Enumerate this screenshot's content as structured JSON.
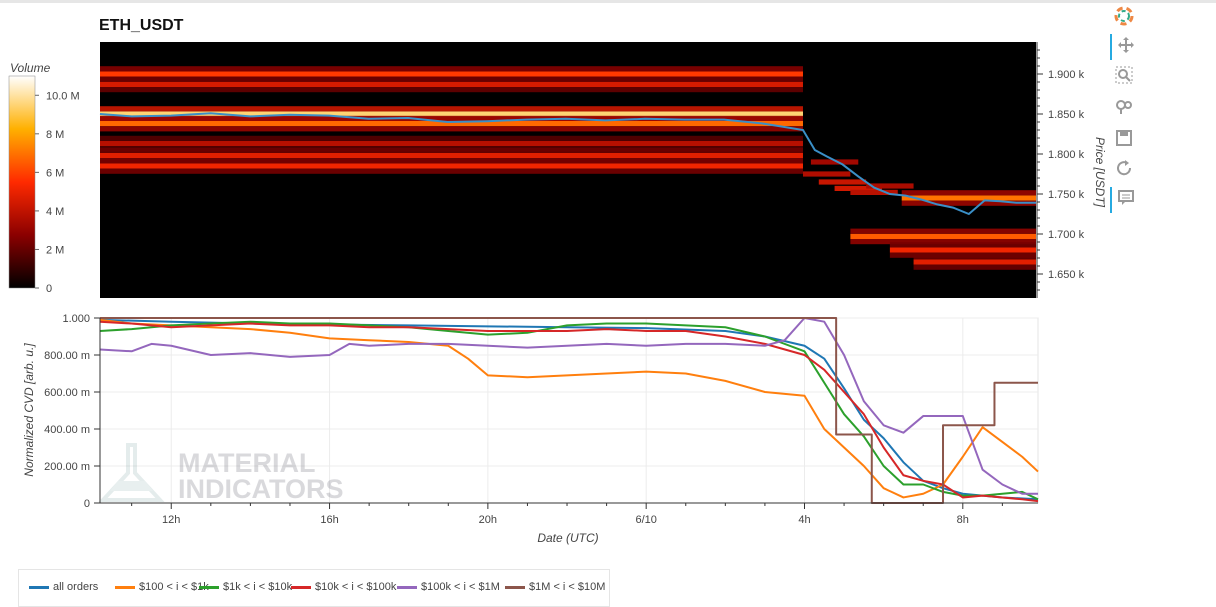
{
  "title": "ETH_USDT",
  "toolbar": [
    {
      "name": "bokeh-logo-icon",
      "label": "Bokeh"
    },
    {
      "name": "pan-icon",
      "label": "Pan",
      "active": true
    },
    {
      "name": "box-zoom-icon",
      "label": "Box Zoom"
    },
    {
      "name": "wheel-zoom-icon",
      "label": "Wheel Zoom"
    },
    {
      "name": "save-icon",
      "label": "Save"
    },
    {
      "name": "reset-icon",
      "label": "Reset"
    },
    {
      "name": "hover-icon",
      "label": "Hover",
      "active": true
    }
  ],
  "chart_data": [
    {
      "type": "heatmap",
      "title": "ETH_USDT",
      "colorbar": {
        "label": "Volume",
        "ticks": [
          "0",
          "2 M",
          "4 M",
          "6 M",
          "8 M",
          "10.0 M"
        ],
        "range": [
          0,
          11000000
        ]
      },
      "ylabel": "Price [USDT]",
      "yticks": [
        "1.650 k",
        "1.700 k",
        "1.750 k",
        "1.800 k",
        "1.850 k",
        "1.900 k"
      ],
      "ylim": [
        1620,
        1940
      ],
      "x_range_hours": [
        10.2,
        33.9
      ],
      "bands": [
        {
          "price": 1900,
          "volume": 5800000,
          "t_end": 28.0
        },
        {
          "price": 1887,
          "volume": 4500000,
          "t_end": 28.0
        },
        {
          "price": 1850,
          "volume": 9500000,
          "t_end": 28.0
        },
        {
          "price": 1838,
          "volume": 6800000,
          "t_end": 28.0
        },
        {
          "price": 1813,
          "volume": 3800000,
          "t_end": 28.0
        },
        {
          "price": 1798,
          "volume": 4800000,
          "t_end": 28.0
        },
        {
          "price": 1785,
          "volume": 5200000,
          "t_end": 28.0
        },
        {
          "price": 1745,
          "volume": 7000000,
          "t_start": 30.5
        },
        {
          "price": 1697,
          "volume": 6500000,
          "t_start": 29.2
        },
        {
          "price": 1680,
          "volume": 5200000,
          "t_start": 30.2
        },
        {
          "price": 1665,
          "volume": 4800000,
          "t_start": 30.8
        }
      ],
      "price_line": {
        "color": "#3a8fc7",
        "x": [
          10.2,
          11,
          12,
          13,
          14,
          15,
          16,
          17,
          18,
          19,
          20,
          21,
          22,
          23,
          24,
          25,
          26,
          27,
          28,
          28.3,
          28.6,
          29,
          29.4,
          29.8,
          30.2,
          30.6,
          31,
          31.4,
          31.8,
          32.2,
          32.6,
          33,
          33.4,
          33.9
        ],
        "y": [
          1850,
          1847,
          1848,
          1851,
          1847,
          1849,
          1848,
          1844,
          1845,
          1840,
          1841,
          1843,
          1844,
          1842,
          1844,
          1843,
          1843,
          1838,
          1830,
          1805,
          1797,
          1787,
          1772,
          1758,
          1750,
          1748,
          1743,
          1737,
          1733,
          1725,
          1742,
          1741,
          1739,
          1739
        ]
      }
    },
    {
      "type": "line",
      "xlabel": "Date (UTC)",
      "ylabel": "Normalized CVD [arb. u.]",
      "xticks": [
        {
          "t": 12,
          "label": "12h"
        },
        {
          "t": 16,
          "label": "16h"
        },
        {
          "t": 20,
          "label": "20h"
        },
        {
          "t": 24,
          "label": "6/10"
        },
        {
          "t": 28,
          "label": "4h"
        },
        {
          "t": 32,
          "label": "8h"
        }
      ],
      "yticks": [
        {
          "v": 0,
          "label": "0"
        },
        {
          "v": 0.2,
          "label": "200.00 m"
        },
        {
          "v": 0.4,
          "label": "400.00 m"
        },
        {
          "v": 0.6,
          "label": "600.00 m"
        },
        {
          "v": 0.8,
          "label": "800.00 m"
        },
        {
          "v": 1.0,
          "label": "1.000"
        }
      ],
      "ylim": [
        0,
        1
      ],
      "x_range_hours": [
        10.2,
        33.9
      ],
      "grid": true,
      "legend_position": "bottom",
      "series": [
        {
          "name": "all orders",
          "color": "#1f77b4",
          "x": [
            10.2,
            12,
            14,
            16,
            18,
            20,
            22,
            24,
            26,
            27,
            28,
            28.5,
            29,
            29.5,
            30,
            30.5,
            31,
            31.5,
            32,
            32.5,
            33,
            33.9
          ],
          "y": [
            0.99,
            0.98,
            0.97,
            0.965,
            0.96,
            0.955,
            0.95,
            0.945,
            0.93,
            0.9,
            0.85,
            0.78,
            0.62,
            0.45,
            0.35,
            0.22,
            0.12,
            0.08,
            0.05,
            0.04,
            0.03,
            0.02
          ]
        },
        {
          "name": "$100 < i < $1k",
          "color": "#ff7f0e",
          "x": [
            10.2,
            11,
            12,
            13,
            14,
            15,
            16,
            17,
            18,
            19,
            19.5,
            20,
            21,
            22,
            23,
            24,
            25,
            26,
            27,
            28,
            28.5,
            29,
            29.5,
            30,
            30.5,
            31,
            31.5,
            32,
            32.5,
            33,
            33.5,
            33.9
          ],
          "y": [
            0.99,
            0.97,
            0.96,
            0.95,
            0.94,
            0.92,
            0.89,
            0.88,
            0.87,
            0.85,
            0.78,
            0.69,
            0.68,
            0.69,
            0.7,
            0.71,
            0.7,
            0.66,
            0.6,
            0.58,
            0.4,
            0.3,
            0.2,
            0.08,
            0.03,
            0.05,
            0.1,
            0.25,
            0.41,
            0.33,
            0.25,
            0.17
          ]
        },
        {
          "name": "$1k < i < $10k",
          "color": "#2ca02c",
          "x": [
            10.2,
            11,
            12,
            13,
            14,
            15,
            16,
            17,
            18,
            19,
            20,
            21,
            22,
            23,
            24,
            25,
            26,
            27,
            28,
            28.5,
            29,
            29.5,
            30,
            30.5,
            31,
            31.5,
            32,
            32.5,
            33,
            33.5,
            33.9
          ],
          "y": [
            0.93,
            0.94,
            0.96,
            0.97,
            0.98,
            0.97,
            0.97,
            0.96,
            0.95,
            0.93,
            0.91,
            0.92,
            0.96,
            0.97,
            0.97,
            0.96,
            0.95,
            0.9,
            0.82,
            0.65,
            0.48,
            0.36,
            0.2,
            0.1,
            0.1,
            0.06,
            0.04,
            0.04,
            0.05,
            0.06,
            0.02
          ]
        },
        {
          "name": "$10k < i < $100k",
          "color": "#d62728",
          "x": [
            10.2,
            11,
            12,
            13,
            14,
            15,
            16,
            17,
            18,
            19,
            20,
            21,
            22,
            23,
            24,
            25,
            26,
            27,
            28,
            28.5,
            29,
            29.5,
            30,
            30.5,
            31,
            31.5,
            32,
            32.5,
            33,
            33.5,
            33.9
          ],
          "y": [
            0.98,
            0.97,
            0.95,
            0.96,
            0.97,
            0.96,
            0.96,
            0.95,
            0.95,
            0.94,
            0.93,
            0.93,
            0.93,
            0.94,
            0.93,
            0.93,
            0.9,
            0.86,
            0.8,
            0.72,
            0.6,
            0.48,
            0.3,
            0.15,
            0.12,
            0.1,
            0.03,
            0.04,
            0.03,
            0.02,
            0.01
          ]
        },
        {
          "name": "$100k < i < $1M",
          "color": "#9467bd",
          "x": [
            10.2,
            11,
            11.5,
            12,
            13,
            14,
            15,
            16,
            16.5,
            17,
            18,
            19,
            20,
            21,
            22,
            23,
            24,
            25,
            26,
            27,
            27.5,
            28,
            28.5,
            29,
            29.5,
            30,
            30.5,
            31,
            31.5,
            32,
            32.5,
            33,
            33.5,
            33.9
          ],
          "y": [
            0.83,
            0.82,
            0.86,
            0.85,
            0.8,
            0.81,
            0.79,
            0.8,
            0.86,
            0.85,
            0.86,
            0.86,
            0.85,
            0.84,
            0.85,
            0.86,
            0.85,
            0.86,
            0.86,
            0.85,
            0.88,
            1.0,
            0.98,
            0.8,
            0.55,
            0.42,
            0.38,
            0.47,
            0.47,
            0.47,
            0.18,
            0.1,
            0.05,
            0.05
          ]
        },
        {
          "name": "$1M < i < $10M",
          "color": "#8c564b",
          "x": [
            10.2,
            28.8,
            28.8,
            29.7,
            29.7,
            30.6,
            30.6,
            31.5,
            31.5,
            32.8,
            32.8,
            33.9
          ],
          "y": [
            1.0,
            1.0,
            0.37,
            0.37,
            0.0,
            0.0,
            0.0,
            0.0,
            0.42,
            0.42,
            0.65,
            0.65
          ]
        }
      ]
    }
  ]
}
